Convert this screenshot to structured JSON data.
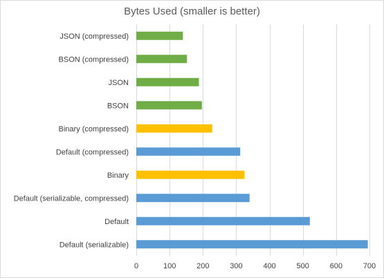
{
  "chart_data": {
    "type": "bar",
    "orientation": "horizontal",
    "title": "Bytes Used (smaller is better)",
    "xlabel": "",
    "ylabel": "",
    "xlim": [
      0,
      700
    ],
    "x_ticks": [
      0,
      100,
      200,
      300,
      400,
      500,
      600,
      700
    ],
    "grid": "vertical",
    "legend": "none",
    "categories": [
      "JSON (compressed)",
      "BSON (compressed)",
      "JSON",
      "BSON",
      "Binary (compressed)",
      "Default (compressed)",
      "Binary",
      "Default (serializable, compressed)",
      "Default",
      "Default (serializable)"
    ],
    "values": [
      140,
      152,
      188,
      197,
      228,
      312,
      325,
      340,
      521,
      695
    ],
    "bar_colors": [
      "#70ad47",
      "#70ad47",
      "#70ad47",
      "#70ad47",
      "#ffc000",
      "#5b9bd5",
      "#ffc000",
      "#5b9bd5",
      "#5b9bd5",
      "#5b9bd5"
    ]
  }
}
